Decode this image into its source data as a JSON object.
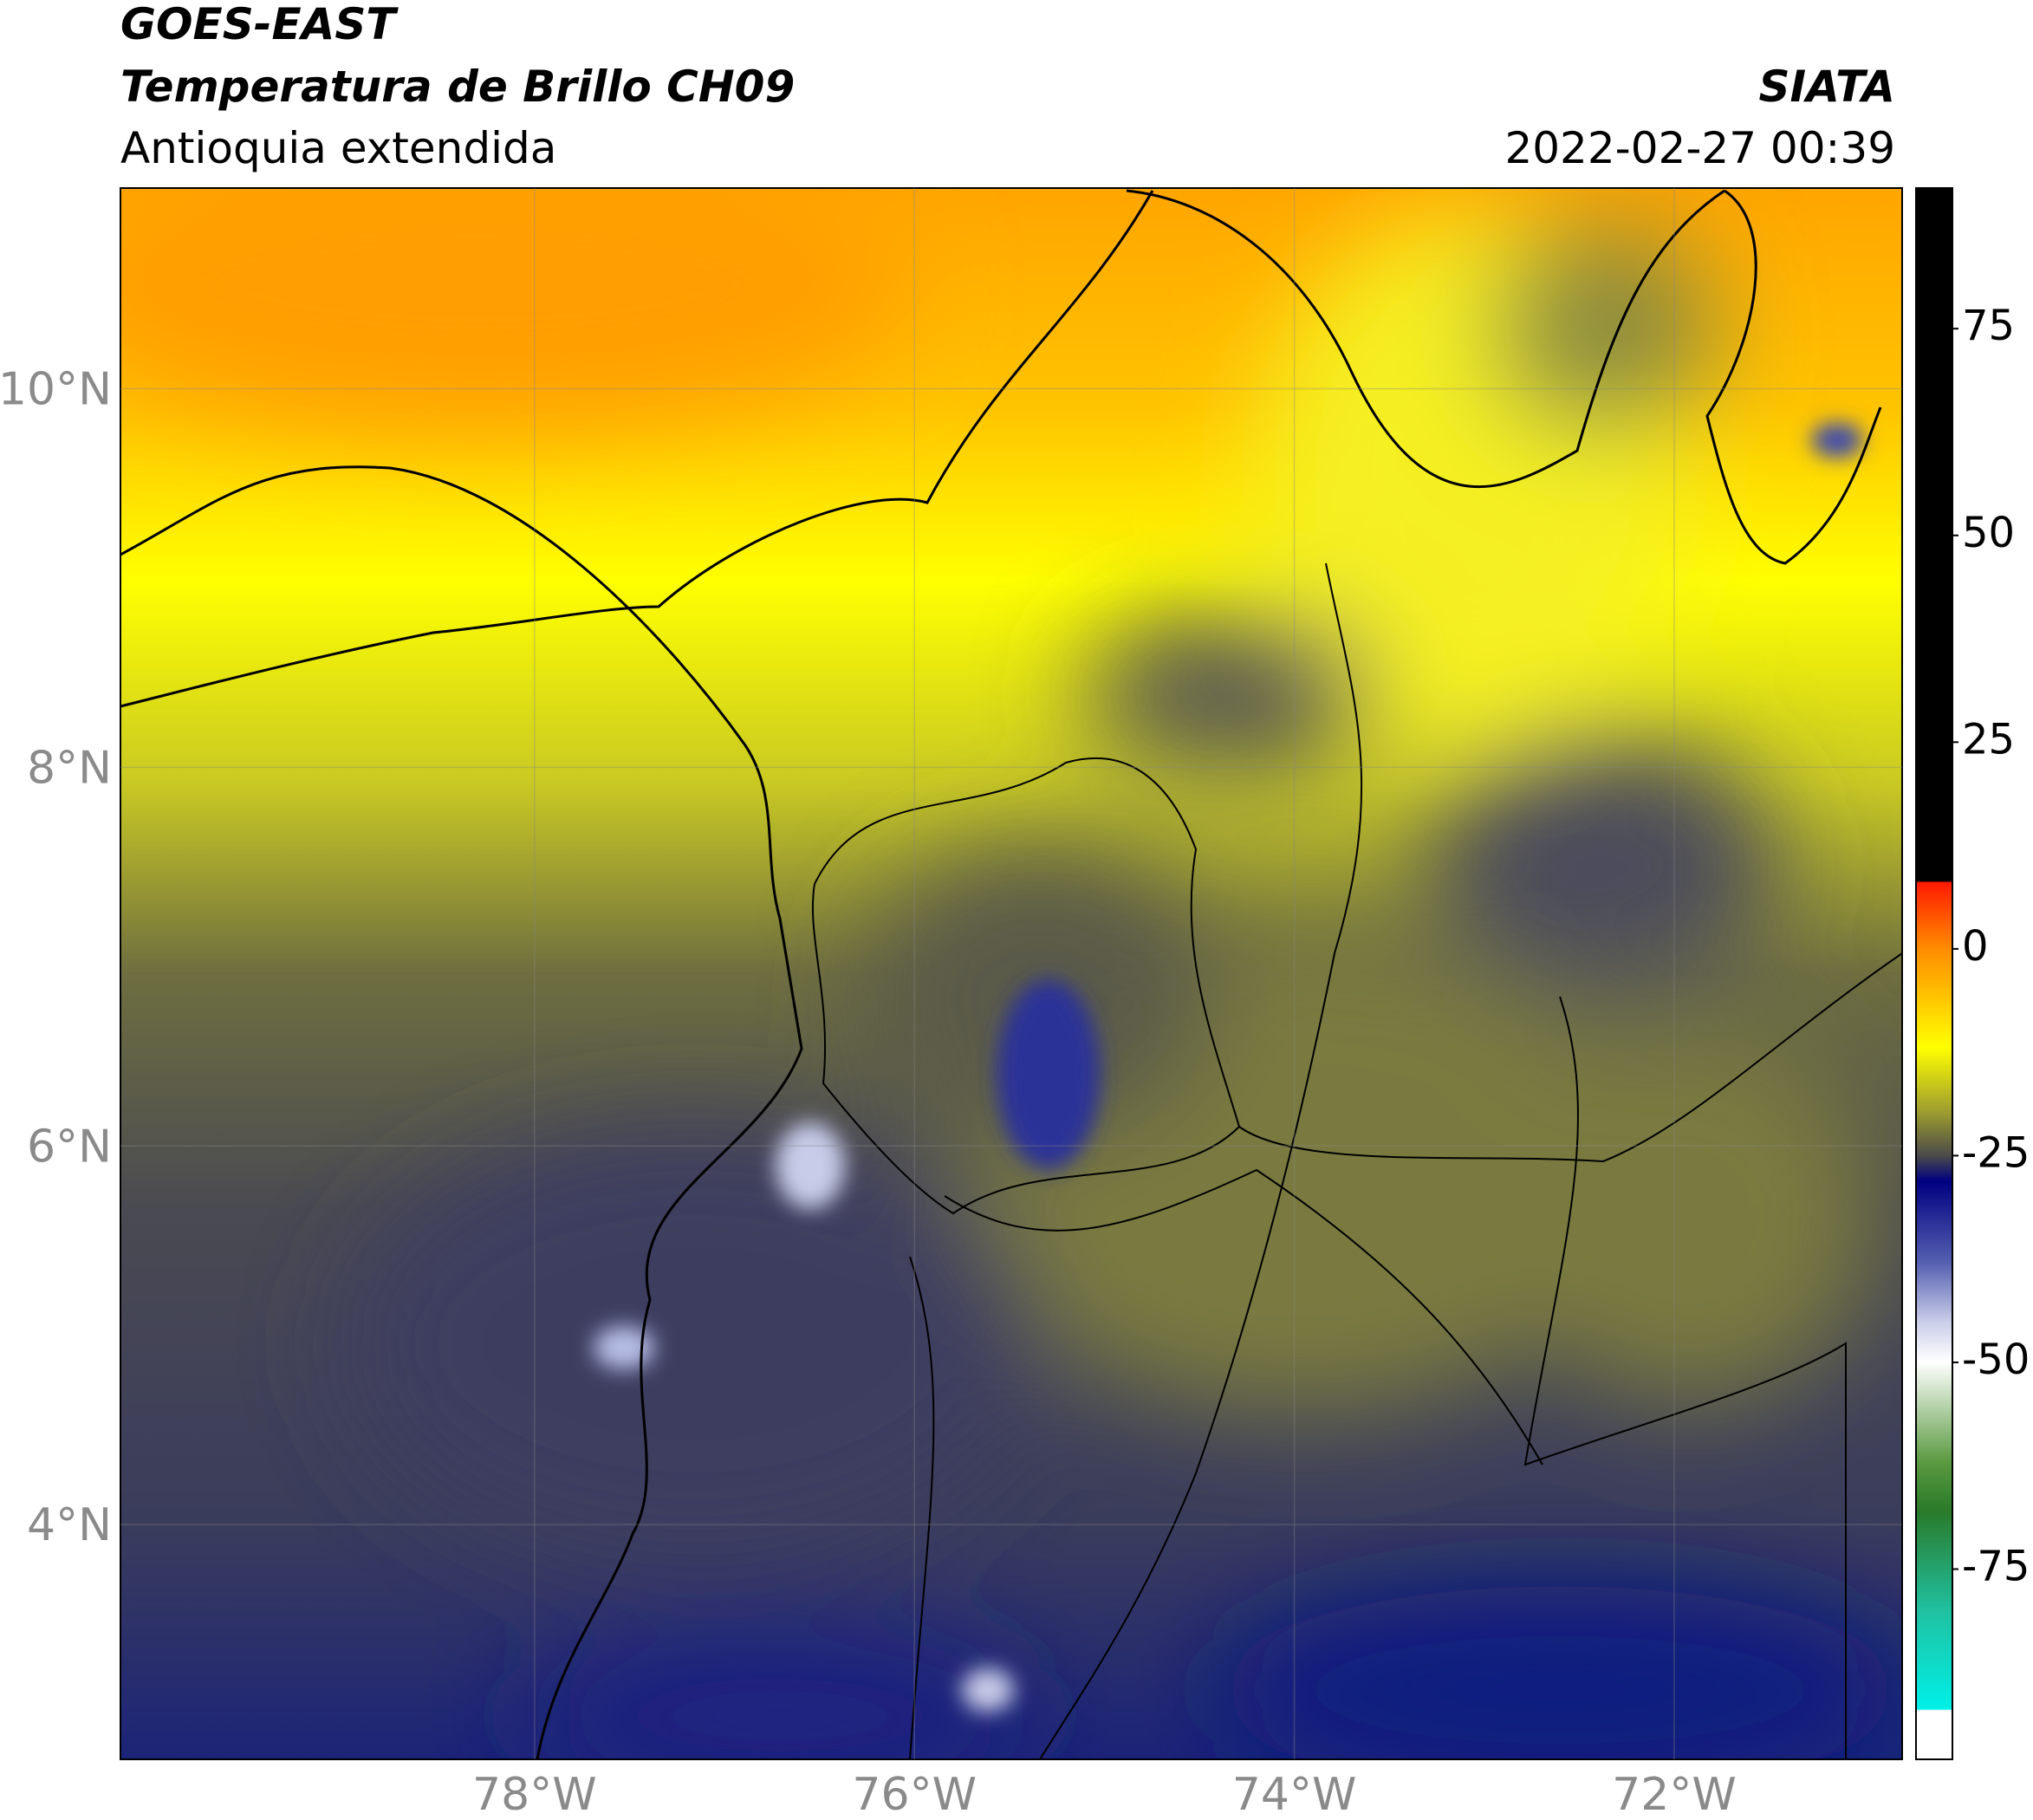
{
  "header": {
    "title": "GOES-EAST",
    "subtitle": "Temperatura de Brillo CH09",
    "region": "Antioquia extendida",
    "source": "SIATA",
    "datetime": "2022-02-27 00:39"
  },
  "map": {
    "lat_range": [
      2.76,
      11.06
    ],
    "lon_range": [
      -80.18,
      -70.8
    ],
    "grid": true,
    "lat_ticks": [
      {
        "value": 10,
        "label": "10°N"
      },
      {
        "value": 8,
        "label": "8°N"
      },
      {
        "value": 6,
        "label": "6°N"
      },
      {
        "value": 4,
        "label": "4°N"
      }
    ],
    "lon_ticks": [
      {
        "value": -78,
        "label": "78°W"
      },
      {
        "value": -76,
        "label": "76°W"
      },
      {
        "value": -74,
        "label": "74°W"
      },
      {
        "value": -72,
        "label": "72°W"
      }
    ],
    "colorbar": {
      "range": [
        -98,
        92
      ],
      "ticks": [
        75,
        50,
        25,
        0,
        -25,
        -50,
        -75
      ]
    }
  }
}
